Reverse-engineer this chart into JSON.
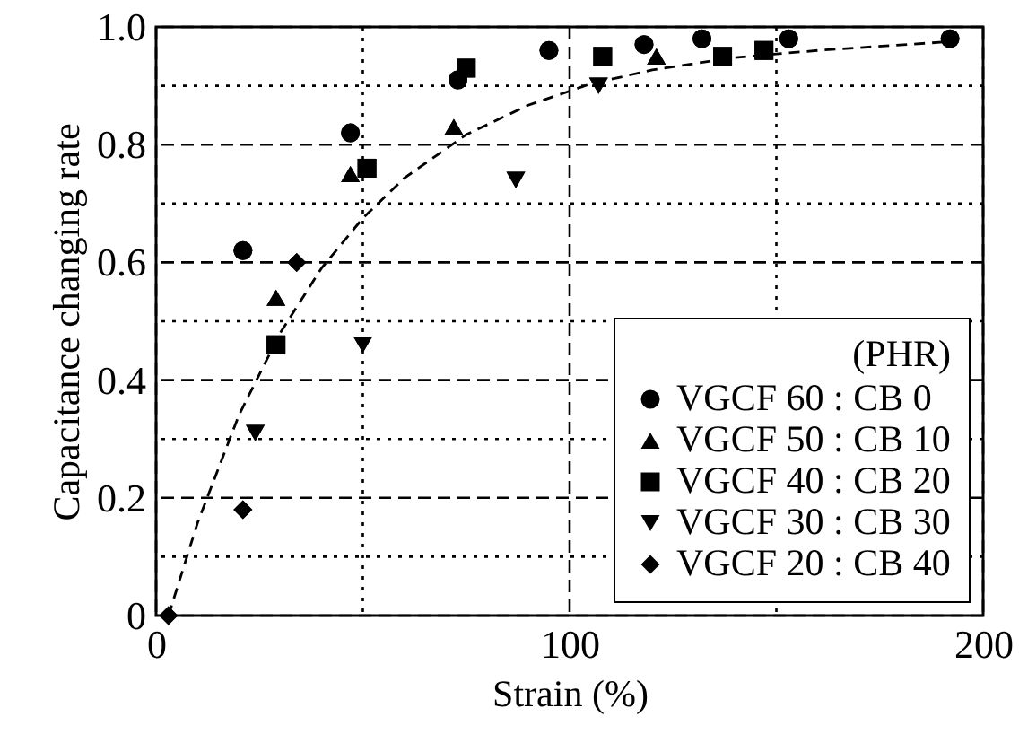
{
  "chart_data": {
    "type": "scatter",
    "xlabel": "Strain (%)",
    "ylabel": "Capacitance changing rate",
    "legend_title": "(PHR)",
    "xlim": [
      0,
      200
    ],
    "xticks": [
      0,
      {
        "value": 50,
        "label": null
      },
      100,
      {
        "value": 150,
        "label": null
      },
      200
    ],
    "ylim": [
      0,
      1
    ],
    "yticks": [
      0,
      {
        "value": 0.1,
        "label": null
      },
      0.2,
      {
        "value": 0.3,
        "label": null
      },
      0.4,
      {
        "value": 0.5,
        "label": null
      },
      0.6,
      {
        "value": 0.7,
        "label": null
      },
      0.8,
      {
        "value": 0.9,
        "label": null
      },
      {
        "value": 1,
        "label": "1.0"
      }
    ],
    "grid": true,
    "legend": "bottom right",
    "series": [
      {
        "name": "VGCF 60 : CB  0",
        "color": "#000000",
        "marker": "circle",
        "x": [
          21,
          47,
          73,
          95,
          118,
          132,
          153,
          192
        ],
        "values": [
          0.62,
          0.82,
          0.91,
          0.96,
          0.97,
          0.98,
          0.98,
          0.98
        ]
      },
      {
        "name": "VGCF 50 : CB 10",
        "color": "#000000",
        "marker": "triangle",
        "x": [
          29,
          47,
          72,
          121
        ],
        "values": [
          0.54,
          0.75,
          0.83,
          0.95
        ]
      },
      {
        "name": "VGCF 40 : CB 20",
        "color": "#000000",
        "marker": "square",
        "x": [
          29,
          51,
          75,
          108,
          137,
          147
        ],
        "values": [
          0.46,
          0.76,
          0.93,
          0.95,
          0.95,
          0.96
        ]
      },
      {
        "name": "VGCF 30 : CB 30",
        "color": "#000000",
        "marker": "triangle-down",
        "x": [
          24,
          50,
          87,
          107
        ],
        "values": [
          0.31,
          0.46,
          0.74,
          0.9
        ]
      },
      {
        "name": "VGCF 20 : CB 40",
        "color": "#000000",
        "marker": "diamond",
        "x": [
          3,
          21,
          34
        ],
        "values": [
          0,
          0.18,
          0.6
        ]
      },
      {
        "type": "line",
        "color": "#000000",
        "marker": "none",
        "line_style": "dashed",
        "x": [
          3,
          10,
          20,
          30,
          40,
          50,
          60,
          75,
          90,
          105,
          120,
          140,
          160,
          192
        ],
        "values": [
          0,
          0.157,
          0.34,
          0.48,
          0.59,
          0.675,
          0.743,
          0.817,
          0.867,
          0.903,
          0.927,
          0.948,
          0.96,
          0.975
        ]
      }
    ]
  }
}
